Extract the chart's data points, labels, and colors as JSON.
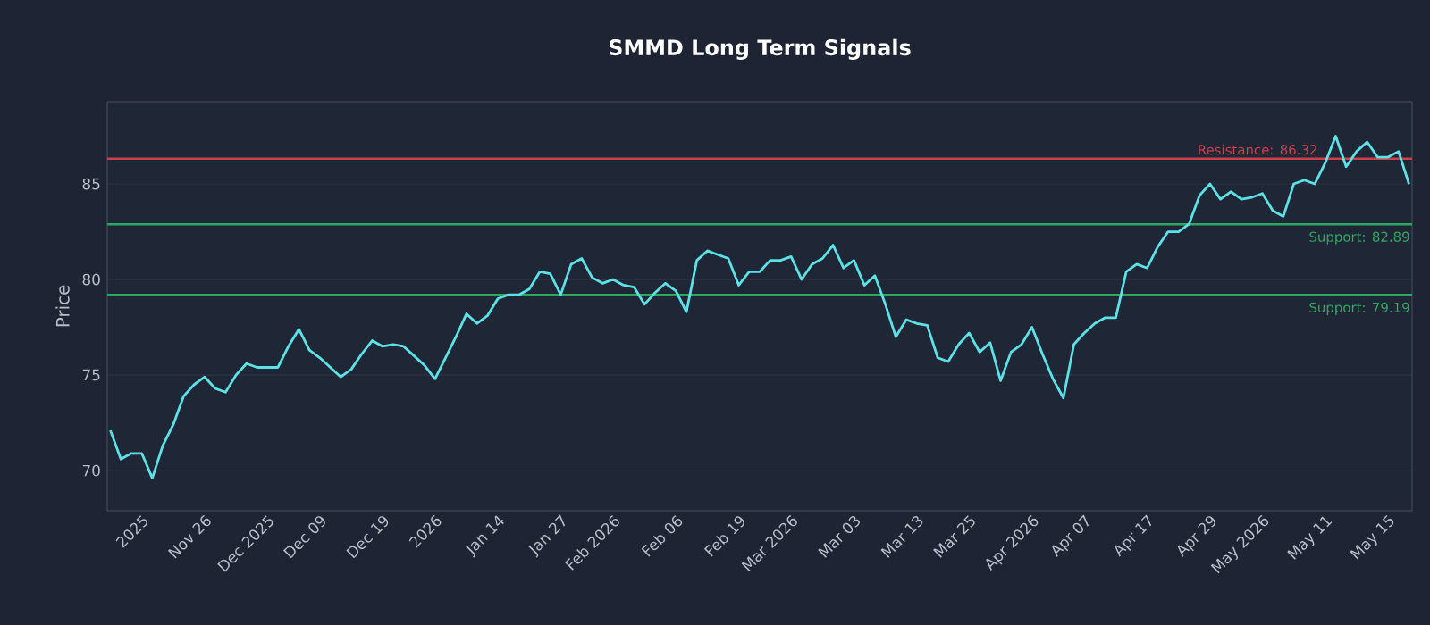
{
  "chart_data": {
    "type": "line",
    "title": "SMMD Long Term Signals",
    "ylabel": "Price",
    "categories": [
      null,
      null,
      null,
      "2025",
      null,
      null,
      null,
      null,
      null,
      "Nov 26",
      null,
      null,
      null,
      null,
      null,
      "Dec 2025",
      null,
      null,
      null,
      null,
      "Dec 09",
      null,
      null,
      null,
      null,
      null,
      "Dec 19",
      null,
      null,
      null,
      null,
      "2026",
      null,
      null,
      null,
      null,
      null,
      "Jan 14",
      null,
      null,
      null,
      null,
      null,
      "Jan 27",
      null,
      null,
      null,
      null,
      "Feb 2026",
      null,
      null,
      null,
      null,
      null,
      "Feb 06",
      null,
      null,
      null,
      null,
      null,
      "Feb 19",
      null,
      null,
      null,
      null,
      "Mar 2026",
      null,
      null,
      null,
      null,
      null,
      "Mar 03",
      null,
      null,
      null,
      null,
      null,
      "Mar 13",
      null,
      null,
      null,
      null,
      "Mar 25",
      null,
      null,
      null,
      null,
      null,
      "Apr 2026",
      null,
      null,
      null,
      null,
      "Apr 07",
      null,
      null,
      null,
      null,
      null,
      "Apr 17",
      null,
      null,
      null,
      null,
      null,
      "Apr 29",
      null,
      null,
      null,
      null,
      "May 2026",
      null,
      null,
      null,
      null,
      null,
      "May 11",
      null,
      null,
      null,
      null,
      null,
      "May 15",
      null,
      null
    ],
    "series": [
      {
        "color": "#5ce1e6",
        "values": [
          72.1,
          70.6,
          70.9,
          70.9,
          69.6,
          71.3,
          72.4,
          73.9,
          74.5,
          74.9,
          74.3,
          74.1,
          75.0,
          75.6,
          75.4,
          75.4,
          75.4,
          76.5,
          77.4,
          76.3,
          75.9,
          75.4,
          74.9,
          75.3,
          76.1,
          76.8,
          76.5,
          76.6,
          76.5,
          76.0,
          75.5,
          74.8,
          75.9,
          77.0,
          78.2,
          77.7,
          78.1,
          79.0,
          79.2,
          79.2,
          79.5,
          80.4,
          80.3,
          79.2,
          80.8,
          81.1,
          80.1,
          79.8,
          80.0,
          79.7,
          79.6,
          78.7,
          79.3,
          79.8,
          79.4,
          78.3,
          81.0,
          81.5,
          81.3,
          81.1,
          79.7,
          80.4,
          80.4,
          81.0,
          81.0,
          81.2,
          80.0,
          80.8,
          81.1,
          81.8,
          80.6,
          81.0,
          79.7,
          80.2,
          78.7,
          77.0,
          77.9,
          77.7,
          77.6,
          75.9,
          75.7,
          76.6,
          77.2,
          76.2,
          76.7,
          74.7,
          76.2,
          76.6,
          77.5,
          76.1,
          74.8,
          73.8,
          76.6,
          77.2,
          77.7,
          78.0,
          78.0,
          80.4,
          80.8,
          80.6,
          81.7,
          82.5,
          82.5,
          82.9,
          84.4,
          85.0,
          84.2,
          84.6,
          84.2,
          84.3,
          84.5,
          83.6,
          83.3,
          85.0,
          85.2,
          85.0,
          86.1,
          87.5,
          85.9,
          86.7,
          87.2,
          86.4,
          86.4,
          86.7,
          85.0
        ]
      }
    ],
    "ylim": [
      67.9,
      89.3
    ],
    "yticks": [
      70,
      75,
      80,
      85
    ],
    "ref_lines": [
      {
        "axis": "y",
        "value": 86.32,
        "label": "Resistance: 86.32",
        "color": "#c8414b"
      },
      {
        "axis": "y",
        "value": 82.89,
        "label": "Support: 82.89",
        "color": "#2ea860"
      },
      {
        "axis": "y",
        "value": 79.19,
        "label": "Support: 79.19",
        "color": "#2ea860"
      }
    ],
    "grid": "y",
    "marker": "none",
    "line_style": "solid"
  }
}
